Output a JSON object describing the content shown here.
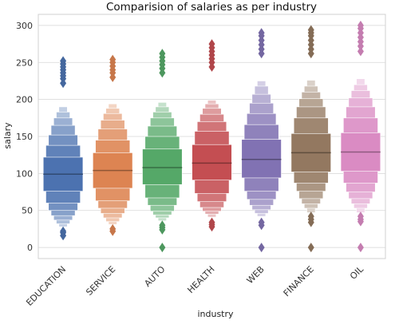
{
  "chart_data": {
    "type": "boxen",
    "title": "Comparision of salaries as per industry",
    "xlabel": "industry",
    "ylabel": "salary",
    "ylim": [
      -15,
      315
    ],
    "yticks": [
      0,
      50,
      100,
      150,
      200,
      250,
      300
    ],
    "grid": true,
    "categories": [
      "EDUCATION",
      "SERVICE",
      "AUTO",
      "HEALTH",
      "WEB",
      "FINANCE",
      "OIL"
    ],
    "colors": [
      "#4c72b0",
      "#dd8452",
      "#55a868",
      "#c44e52",
      "#8172b3",
      "#937860",
      "#da8bc3"
    ],
    "series": [
      {
        "category": "EDUCATION",
        "median": 99,
        "quartiles": [
          76,
          122
        ],
        "letter_values": [
          [
            76,
            122
          ],
          [
            60,
            138
          ],
          [
            50,
            152
          ],
          [
            43,
            165
          ],
          [
            37,
            175
          ],
          [
            32,
            183
          ],
          [
            28,
            190
          ]
        ],
        "outliers_low": [
          16,
          20,
          22
        ],
        "outliers_high": [
          222,
          228,
          232,
          236,
          240,
          244,
          248,
          252
        ]
      },
      {
        "category": "SERVICE",
        "median": 104,
        "quartiles": [
          80,
          128
        ],
        "letter_values": [
          [
            80,
            128
          ],
          [
            63,
            145
          ],
          [
            53,
            160
          ],
          [
            46,
            172
          ],
          [
            40,
            181
          ],
          [
            35,
            188
          ],
          [
            31,
            194
          ]
        ],
        "outliers_low": [
          22,
          25
        ],
        "outliers_high": [
          230,
          236,
          240,
          245,
          250,
          254
        ]
      },
      {
        "category": "AUTO",
        "median": 108,
        "quartiles": [
          85,
          133
        ],
        "letter_values": [
          [
            85,
            133
          ],
          [
            67,
            150
          ],
          [
            57,
            164
          ],
          [
            49,
            175
          ],
          [
            44,
            183
          ],
          [
            40,
            190
          ],
          [
            36,
            196
          ]
        ],
        "outliers_low": [
          0,
          24,
          27,
          30
        ],
        "outliers_high": [
          236,
          242,
          247,
          252,
          257,
          262
        ]
      },
      {
        "category": "HEALTH",
        "median": 114,
        "quartiles": [
          91,
          139
        ],
        "letter_values": [
          [
            91,
            139
          ],
          [
            73,
            157
          ],
          [
            62,
            170
          ],
          [
            54,
            180
          ],
          [
            49,
            188
          ],
          [
            45,
            194
          ],
          [
            41,
            199
          ]
        ],
        "outliers_low": [
          28,
          31,
          34
        ],
        "outliers_high": [
          244,
          250,
          255,
          260,
          265,
          270,
          275
        ]
      },
      {
        "category": "WEB",
        "median": 119,
        "quartiles": [
          94,
          146
        ],
        "letter_values": [
          [
            94,
            146
          ],
          [
            76,
            166
          ],
          [
            65,
            181
          ],
          [
            57,
            195
          ],
          [
            51,
            207
          ],
          [
            46,
            218
          ],
          [
            42,
            225
          ]
        ],
        "outliers_low": [
          0,
          30,
          34
        ],
        "outliers_high": [
          262,
          268,
          274,
          280,
          286,
          290
        ]
      },
      {
        "category": "FINANCE",
        "median": 128,
        "quartiles": [
          102,
          154
        ],
        "letter_values": [
          [
            102,
            154
          ],
          [
            87,
            175
          ],
          [
            76,
            190
          ],
          [
            66,
            201
          ],
          [
            59,
            210
          ],
          [
            53,
            218
          ],
          [
            47,
            226
          ]
        ],
        "outliers_low": [
          0,
          34,
          38,
          42
        ],
        "outliers_high": [
          262,
          268,
          274,
          280,
          286,
          290,
          294
        ]
      },
      {
        "category": "OIL",
        "median": 129,
        "quartiles": [
          103,
          155
        ],
        "letter_values": [
          [
            103,
            155
          ],
          [
            87,
            175
          ],
          [
            75,
            190
          ],
          [
            66,
            202
          ],
          [
            59,
            212
          ],
          [
            53,
            220
          ],
          [
            47,
            228
          ]
        ],
        "outliers_low": [
          0,
          35,
          38,
          42
        ],
        "outliers_high": [
          265,
          272,
          278,
          284,
          290,
          296,
          300
        ]
      }
    ]
  }
}
